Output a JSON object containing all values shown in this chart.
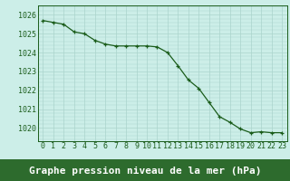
{
  "hours": [
    0,
    1,
    2,
    3,
    4,
    5,
    6,
    7,
    8,
    9,
    10,
    11,
    12,
    13,
    14,
    15,
    16,
    17,
    18,
    19,
    20,
    21,
    22,
    23
  ],
  "pressure": [
    1025.7,
    1025.6,
    1025.5,
    1025.1,
    1025.0,
    1024.65,
    1024.45,
    1024.35,
    1024.35,
    1024.35,
    1024.35,
    1024.3,
    1024.0,
    1023.3,
    1022.55,
    1022.1,
    1021.35,
    1020.6,
    1020.3,
    1019.95,
    1019.75,
    1019.8,
    1019.75,
    1019.75
  ],
  "line_color": "#1a5c1a",
  "marker_color": "#1a5c1a",
  "bg_color": "#cceee8",
  "grid_color": "#aad4cc",
  "xlabel_bg_color": "#2d6b2d",
  "xlabel_text_color": "#ffffff",
  "tick_color": "#1a5c1a",
  "xlabel": "Graphe pression niveau de la mer (hPa)",
  "ylim_min": 1019.3,
  "ylim_max": 1026.5,
  "yticks": [
    1020,
    1021,
    1022,
    1023,
    1024,
    1025,
    1026
  ],
  "xticks": [
    0,
    1,
    2,
    3,
    4,
    5,
    6,
    7,
    8,
    9,
    10,
    11,
    12,
    13,
    14,
    15,
    16,
    17,
    18,
    19,
    20,
    21,
    22,
    23
  ],
  "tick_label_fontsize": 6.0,
  "xlabel_fontsize": 8.0
}
